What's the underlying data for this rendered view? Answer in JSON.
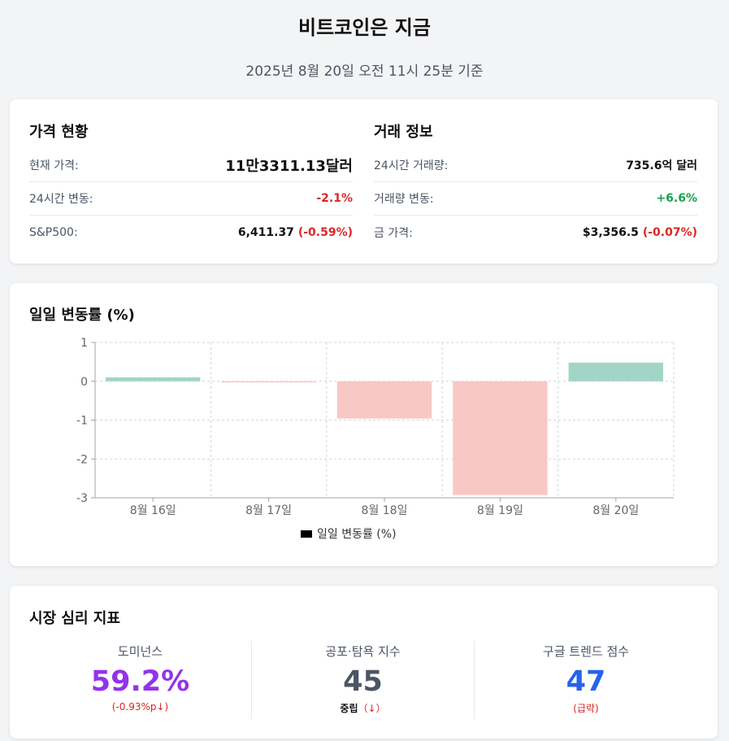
{
  "header": {
    "title": "비트코인은 지금",
    "subtitle": "2025년 8월 20일 오전 11시 25분 기준"
  },
  "price": {
    "title": "가격 현황",
    "current_label": "현재 가격:",
    "current_value": "11만3311.13달러",
    "change_label": "24시간 변동:",
    "change_value": "-2.1%",
    "sp_label": "S&P500:",
    "sp_value": "6,411.37",
    "sp_change": "(-0.59%)"
  },
  "trade": {
    "title": "거래 정보",
    "volume_label": "24시간 거래량:",
    "volume_value": "735.6억 달러",
    "volume_change_label": "거래량 변동:",
    "volume_change_value": "+6.6%",
    "gold_label": "금 가격:",
    "gold_value": "$3,356.5",
    "gold_change": "(-0.07%)"
  },
  "chart_section": {
    "title": "일일 변동률 (%)"
  },
  "chart_data": {
    "type": "bar",
    "title": "일일 변동률 (%)",
    "categories": [
      "8월 16일",
      "8월 17일",
      "8월 18일",
      "8월 19일",
      "8월 20일"
    ],
    "series": [
      {
        "name": "일일 변동률 (%)",
        "values": [
          0.1,
          -0.03,
          -0.96,
          -2.93,
          0.48
        ]
      }
    ],
    "ylim": [
      -3,
      1
    ],
    "yticks": [
      1,
      0,
      -1,
      -2,
      -3
    ],
    "grid": true,
    "legend": "bottom",
    "colors": {
      "positive": "#a2d5c6",
      "negative": "#f7c8c4",
      "legend_swatch": "#000000"
    }
  },
  "sentiment": {
    "title": "시장 심리 지표",
    "dominance": {
      "label": "도미넌스",
      "value": "59.2%",
      "sub": "(-0.93%p↓)",
      "color": "#9333ea"
    },
    "fear_greed": {
      "label": "공포·탐욕 지수",
      "value": "45",
      "sub_main": "중립",
      "sub_arrow": "（↓）",
      "color": "#4b5563"
    },
    "google": {
      "label": "구글 트렌드 점수",
      "value": "47",
      "sub": "(급락)",
      "color": "#2563eb"
    }
  }
}
